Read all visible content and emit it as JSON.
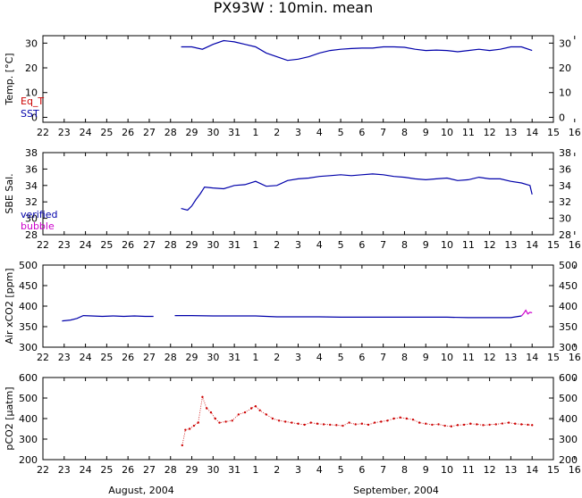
{
  "title": "PX93W : 10min. mean",
  "x_axis": {
    "range": [
      22,
      46
    ],
    "tick_labels": [
      "22",
      "23",
      "24",
      "25",
      "26",
      "27",
      "28",
      "29",
      "30",
      "31",
      "1",
      "2",
      "3",
      "4",
      "5",
      "6",
      "7",
      "8",
      "9",
      "10",
      "11",
      "12",
      "13",
      "14",
      "15",
      "16"
    ],
    "month_labels": [
      "August, 2004",
      "September, 2004"
    ]
  },
  "colors": {
    "eq_t": "#cc0000",
    "sst": "#0000aa",
    "verified": "#0000aa",
    "bubble": "#cc00cc",
    "pco2": "#cc0000"
  },
  "chart_data": [
    {
      "type": "line",
      "ylabel": "Temp. [°C]",
      "ylim": [
        -2,
        33
      ],
      "yticks": [
        0,
        10,
        20,
        30
      ],
      "legend": [
        "Eq_T",
        "SST"
      ],
      "legend_position": "bottom-left",
      "series": [
        {
          "name": "SST",
          "x": [
            28.5,
            29.0,
            29.5,
            30.0,
            30.5,
            31.0,
            31.5,
            32.0,
            32.5,
            33.0,
            33.5,
            34.0,
            34.5,
            35.0,
            35.5,
            36.0,
            36.5,
            37.0,
            37.5,
            38.0,
            38.5,
            39.0,
            39.5,
            40.0,
            40.5,
            41.0,
            41.5,
            42.0,
            42.5,
            43.0,
            43.5,
            44.0,
            44.5,
            45.0
          ],
          "y": [
            28.5,
            28.5,
            27.5,
            29.5,
            31.0,
            30.5,
            29.5,
            28.5,
            26.0,
            24.5,
            23.0,
            23.5,
            24.5,
            26.0,
            27.0,
            27.5,
            27.8,
            28.0,
            28.0,
            28.5,
            28.5,
            28.3,
            27.5,
            27.0,
            27.2,
            27.0,
            26.5,
            27.0,
            27.5,
            27.0,
            27.5,
            28.5,
            28.5,
            27.0
          ]
        },
        {
          "name": "Eq_T",
          "x": [],
          "y": []
        }
      ]
    },
    {
      "type": "line",
      "ylabel": "SBE Sal.",
      "ylim": [
        28,
        38
      ],
      "yticks": [
        28,
        30,
        32,
        34,
        36,
        38
      ],
      "legend": [
        "verified",
        "bubble"
      ],
      "legend_position": "bottom-left",
      "series": [
        {
          "name": "verified",
          "x": [
            28.5,
            28.8,
            29.0,
            29.2,
            29.4,
            29.6,
            30.0,
            30.5,
            31.0,
            31.5,
            32.0,
            32.5,
            33.0,
            33.5,
            34.0,
            34.5,
            35.0,
            35.5,
            36.0,
            36.5,
            37.0,
            37.5,
            38.0,
            38.5,
            39.0,
            39.5,
            40.0,
            40.5,
            41.0,
            41.5,
            42.0,
            42.5,
            43.0,
            43.5,
            44.0,
            44.5,
            44.9,
            45.0
          ],
          "y": [
            31.2,
            31.0,
            31.5,
            32.3,
            33.0,
            33.8,
            33.7,
            33.6,
            34.0,
            34.1,
            34.5,
            33.9,
            34.0,
            34.6,
            34.8,
            34.9,
            35.1,
            35.2,
            35.3,
            35.2,
            35.3,
            35.4,
            35.3,
            35.1,
            35.0,
            34.8,
            34.7,
            34.8,
            34.9,
            34.6,
            34.7,
            35.0,
            34.8,
            34.8,
            34.5,
            34.3,
            34.0,
            32.9
          ]
        },
        {
          "name": "bubble",
          "x": [],
          "y": []
        }
      ]
    },
    {
      "type": "line",
      "ylabel": "Air xCO2 [ppm]",
      "ylim": [
        300,
        500
      ],
      "yticks": [
        300,
        350,
        400,
        450,
        500
      ],
      "series": [
        {
          "name": "verified",
          "x": [
            22.9,
            23.3,
            23.6,
            23.9,
            24.3,
            24.8,
            25.3,
            25.8,
            26.3,
            26.8,
            27.2
          ],
          "y": [
            364,
            366,
            370,
            377,
            376,
            375,
            376,
            375,
            376,
            375,
            375
          ]
        },
        {
          "name": "verified",
          "x": [
            28.2,
            29.0,
            30.0,
            31.0,
            32.0,
            33.0,
            34.0,
            35.0,
            36.0,
            37.0,
            38.0,
            39.0,
            40.0,
            41.0,
            42.0,
            43.0,
            44.0,
            44.5
          ],
          "y": [
            377,
            377,
            376,
            376,
            376,
            374,
            374,
            374,
            373,
            373,
            373,
            373,
            373,
            373,
            372,
            372,
            372,
            376
          ]
        },
        {
          "name": "bubble",
          "x": [
            44.5,
            44.6,
            44.7,
            44.8,
            44.9,
            45.0
          ],
          "y": [
            376,
            382,
            390,
            381,
            385,
            384
          ]
        }
      ]
    },
    {
      "type": "scatter",
      "ylabel": "pCO2 [µatm]",
      "ylim": [
        200,
        600
      ],
      "yticks": [
        200,
        300,
        400,
        500,
        600
      ],
      "series": [
        {
          "name": "pCO2",
          "x": [
            28.55,
            28.7,
            28.9,
            29.1,
            29.3,
            29.5,
            29.7,
            29.9,
            30.1,
            30.3,
            30.6,
            30.9,
            31.2,
            31.5,
            31.8,
            32.0,
            32.2,
            32.5,
            32.8,
            33.1,
            33.4,
            33.7,
            34.0,
            34.3,
            34.6,
            34.9,
            35.2,
            35.5,
            35.8,
            36.1,
            36.4,
            36.7,
            37.0,
            37.3,
            37.6,
            37.9,
            38.2,
            38.5,
            38.8,
            39.1,
            39.4,
            39.7,
            40.0,
            40.3,
            40.6,
            40.9,
            41.2,
            41.5,
            41.8,
            42.1,
            42.4,
            42.7,
            43.0,
            43.3,
            43.6,
            43.9,
            44.2,
            44.5,
            44.8,
            45.0
          ],
          "y": [
            270,
            345,
            350,
            365,
            380,
            505,
            450,
            430,
            400,
            380,
            385,
            390,
            420,
            430,
            450,
            460,
            440,
            420,
            400,
            390,
            385,
            380,
            375,
            370,
            380,
            375,
            372,
            370,
            368,
            365,
            380,
            372,
            375,
            370,
            380,
            385,
            390,
            400,
            405,
            400,
            395,
            380,
            375,
            370,
            372,
            365,
            362,
            368,
            370,
            375,
            372,
            368,
            370,
            372,
            376,
            380,
            375,
            372,
            370,
            368
          ]
        }
      ]
    }
  ]
}
